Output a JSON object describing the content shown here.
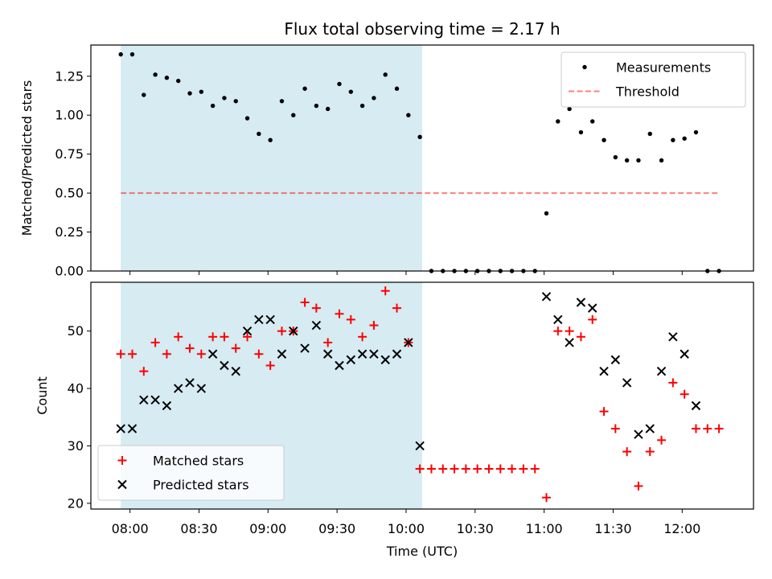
{
  "title": "Flux total observing time = 2.17 h",
  "x_ticks": [
    {
      "value": "08:00",
      "label": "08:00"
    },
    {
      "value": "08:30",
      "label": "08:30"
    },
    {
      "value": "09:00",
      "label": "09:00"
    },
    {
      "value": "09:30",
      "label": "09:30"
    },
    {
      "value": "10:00",
      "label": "10:00"
    },
    {
      "value": "10:30",
      "label": "10:30"
    },
    {
      "value": "11:00",
      "label": "11:00"
    },
    {
      "value": "11:30",
      "label": "11:30"
    },
    {
      "value": "12:00",
      "label": "12:00"
    }
  ],
  "colors": {
    "shade": "#add8e6",
    "measurements": "#000000",
    "threshold": "#ff0000",
    "matched": "#ff0000",
    "predicted": "#000000"
  },
  "chart_data": [
    {
      "type": "scatter",
      "title": "Flux total observing time = 2.17 h",
      "xlabel": "",
      "ylabel": "Matched/Predicted stars",
      "xlim": [
        "07:43",
        "12:31"
      ],
      "ylim": [
        0,
        1.45
      ],
      "yticks": [
        0,
        0.25,
        0.5,
        0.75,
        1.0,
        1.25
      ],
      "ytick_labels": [
        "0.00",
        "0.25",
        "0.50",
        "0.75",
        "1.00",
        "1.25"
      ],
      "shaded_region": {
        "x": [
          "07:56",
          "10:07"
        ]
      },
      "legend": {
        "position": "top-right",
        "entries": [
          "Measurements",
          "Threshold"
        ]
      },
      "threshold": {
        "name": "Threshold",
        "y": 0.5,
        "x": [
          "07:56",
          "12:16"
        ],
        "style": "dashed"
      },
      "series": [
        {
          "name": "Measurements",
          "marker": "dot",
          "x": [
            "07:56",
            "08:01",
            "08:06",
            "08:11",
            "08:16",
            "08:21",
            "08:26",
            "08:31",
            "08:36",
            "08:41",
            "08:46",
            "08:51",
            "08:56",
            "09:01",
            "09:06",
            "09:11",
            "09:16",
            "09:21",
            "09:26",
            "09:31",
            "09:36",
            "09:41",
            "09:46",
            "09:51",
            "09:56",
            "10:01",
            "10:06",
            "10:11",
            "10:16",
            "10:21",
            "10:26",
            "10:31",
            "10:36",
            "10:41",
            "10:46",
            "10:51",
            "10:56",
            "11:01",
            "11:06",
            "11:11",
            "11:16",
            "11:21",
            "11:26",
            "11:31",
            "11:36",
            "11:41",
            "11:46",
            "11:51",
            "11:56",
            "12:01",
            "12:06",
            "12:11",
            "12:16"
          ],
          "y": [
            1.39,
            1.39,
            1.13,
            1.26,
            1.24,
            1.22,
            1.14,
            1.15,
            1.06,
            1.11,
            1.09,
            0.98,
            0.88,
            0.84,
            1.09,
            1.0,
            1.17,
            1.06,
            1.04,
            1.2,
            1.15,
            1.06,
            1.11,
            1.26,
            1.17,
            1.0,
            0.86,
            0,
            0,
            0,
            0,
            0,
            0,
            0,
            0,
            0,
            0,
            0.37,
            0.96,
            1.04,
            0.89,
            0.96,
            0.84,
            0.73,
            0.71,
            0.71,
            0.88,
            0.71,
            0.84,
            0.85,
            0.89,
            0,
            0
          ]
        }
      ]
    },
    {
      "type": "scatter",
      "xlabel": "Time (UTC)",
      "ylabel": "Count",
      "xlim": [
        "07:43",
        "12:31"
      ],
      "ylim": [
        19,
        58.5
      ],
      "yticks": [
        20,
        30,
        40,
        50
      ],
      "ytick_labels": [
        "20",
        "30",
        "40",
        "50"
      ],
      "shaded_region": {
        "x": [
          "07:56",
          "10:07"
        ]
      },
      "legend": {
        "position": "bottom-left",
        "entries": [
          "Matched stars",
          "Predicted stars"
        ]
      },
      "series": [
        {
          "name": "Matched stars",
          "marker": "plus",
          "x": [
            "07:56",
            "08:01",
            "08:06",
            "08:11",
            "08:16",
            "08:21",
            "08:26",
            "08:31",
            "08:36",
            "08:41",
            "08:46",
            "08:51",
            "08:56",
            "09:01",
            "09:06",
            "09:11",
            "09:16",
            "09:21",
            "09:26",
            "09:31",
            "09:36",
            "09:41",
            "09:46",
            "09:51",
            "09:56",
            "10:01",
            "10:06",
            "10:11",
            "10:16",
            "10:21",
            "10:26",
            "10:31",
            "10:36",
            "10:41",
            "10:46",
            "10:51",
            "10:56",
            "11:01",
            "11:06",
            "11:11",
            "11:16",
            "11:21",
            "11:26",
            "11:31",
            "11:36",
            "11:41",
            "11:46",
            "11:51",
            "11:56",
            "12:01",
            "12:06",
            "12:11",
            "12:16"
          ],
          "y": [
            46,
            46,
            43,
            48,
            46,
            49,
            47,
            46,
            49,
            49,
            47,
            49,
            46,
            44,
            50,
            50,
            55,
            54,
            48,
            53,
            52,
            49,
            51,
            57,
            54,
            48,
            26,
            26,
            26,
            26,
            26,
            26,
            26,
            26,
            26,
            26,
            26,
            21,
            50,
            50,
            49,
            52,
            36,
            33,
            29,
            23,
            29,
            31,
            41,
            39,
            33,
            33,
            33
          ]
        },
        {
          "name": "Predicted stars",
          "marker": "x",
          "x": [
            "07:56",
            "08:01",
            "08:06",
            "08:11",
            "08:16",
            "08:21",
            "08:26",
            "08:31",
            "08:36",
            "08:41",
            "08:46",
            "08:51",
            "08:56",
            "09:01",
            "09:06",
            "09:11",
            "09:16",
            "09:21",
            "09:26",
            "09:31",
            "09:36",
            "09:41",
            "09:46",
            "09:51",
            "09:56",
            "10:01",
            "10:06",
            "11:01",
            "11:06",
            "11:11",
            "11:16",
            "11:21",
            "11:26",
            "11:31",
            "11:36",
            "11:41",
            "11:46",
            "11:51",
            "11:56",
            "12:01",
            "12:06"
          ],
          "y": [
            33,
            33,
            38,
            38,
            37,
            40,
            41,
            40,
            46,
            44,
            43,
            50,
            52,
            52,
            46,
            50,
            47,
            51,
            46,
            44,
            45,
            46,
            46,
            45,
            46,
            48,
            30,
            56,
            52,
            48,
            55,
            54,
            43,
            45,
            41,
            32,
            33,
            43,
            49,
            46,
            37
          ]
        }
      ]
    }
  ]
}
